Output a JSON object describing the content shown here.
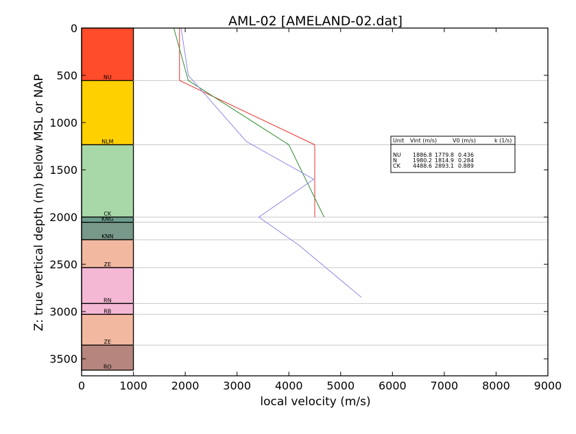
{
  "chart_data": {
    "type": "line",
    "title": "AML-02 [AMELAND-02.dat]",
    "xlabel": "local velocity (m/s)",
    "ylabel": "Z: true vertical depth (m) below MSL or NAP",
    "xlim": [
      0,
      9000
    ],
    "ylim": [
      3680,
      0
    ],
    "xticks": [
      0,
      1000,
      2000,
      3000,
      4000,
      5000,
      6000,
      7000,
      8000,
      9000
    ],
    "yticks": [
      0,
      500,
      1000,
      1500,
      2000,
      2500,
      3000,
      3500
    ],
    "grid": false,
    "lithology_column": {
      "x_range": [
        0,
        1000
      ],
      "units": [
        {
          "label": "NU",
          "top": 0,
          "base": 555,
          "color": "#ff4c2a"
        },
        {
          "label": "NLM",
          "top": 555,
          "base": 1235,
          "color": "#ffd000"
        },
        {
          "label": "CK",
          "top": 1235,
          "base": 2000,
          "color": "#a8d8a8"
        },
        {
          "label": "KNG",
          "top": 2000,
          "base": 2055,
          "color": "#6b9b8b"
        },
        {
          "label": "KNN",
          "top": 2055,
          "base": 2240,
          "color": "#78998a"
        },
        {
          "label": "ZE",
          "top": 2240,
          "base": 2535,
          "color": "#f2b8a0"
        },
        {
          "label": "RN",
          "top": 2535,
          "base": 2915,
          "color": "#f4b8d4"
        },
        {
          "label": "RB",
          "top": 2915,
          "base": 3030,
          "color": "#f4b8d4"
        },
        {
          "label": "ZE",
          "top": 3030,
          "base": 3355,
          "color": "#f2b8a0"
        },
        {
          "label": "RO",
          "top": 3355,
          "base": 3620,
          "color": "#b5857e"
        }
      ]
    },
    "boundary_lines": [
      555,
      1235,
      2000,
      2055,
      2240,
      2535,
      2915,
      3030,
      3355
    ],
    "series": [
      {
        "color": "#e8302a",
        "points": [
          [
            1890,
            0
          ],
          [
            1890,
            555
          ],
          [
            4500,
            1235
          ],
          [
            4500,
            2000
          ]
        ]
      },
      {
        "color": "#2e8b2e",
        "points": [
          [
            1780,
            0
          ],
          [
            2060,
            555
          ],
          [
            4000,
            1235
          ],
          [
            4680,
            2000
          ]
        ]
      },
      {
        "color": "#8a8ae8",
        "points": [
          [
            1920,
            0
          ],
          [
            2060,
            500
          ],
          [
            3180,
            1200
          ],
          [
            4480,
            1600
          ],
          [
            3420,
            2000
          ],
          [
            4200,
            2300
          ],
          [
            5400,
            2850
          ]
        ]
      }
    ],
    "stats_box": {
      "header": [
        "Unit",
        "Vint (m/s)",
        "V0 (m/s)",
        "k (1/s)"
      ],
      "rows": [
        [
          "NU",
          "1886.8",
          "1779.8",
          "0.436"
        ],
        [
          "N",
          "1980.2",
          "1814.9",
          "0.284"
        ],
        [
          "CK",
          "4488.6",
          "2893.1",
          "0.889"
        ]
      ]
    }
  }
}
